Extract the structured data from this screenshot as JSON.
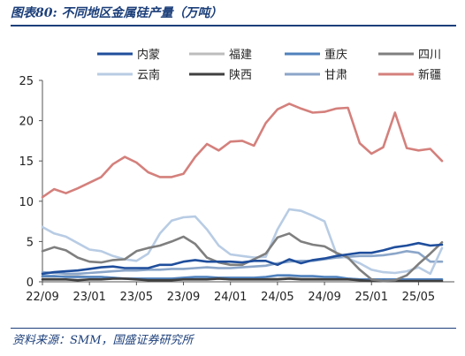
{
  "header": {
    "title": "图表80:  不同地区金属硅产量（万吨）"
  },
  "footer": {
    "source": "资料来源：SMM，国盛证券研究所"
  },
  "chart_data": {
    "type": "line",
    "title": "图表80:  不同地区金属硅产量（万吨）",
    "ylim": [
      0,
      25
    ],
    "yticks": [
      0,
      5,
      10,
      15,
      20,
      25
    ],
    "x_tick_labels": [
      "22/09",
      "23/01",
      "23/05",
      "23/09",
      "24/01",
      "24/05",
      "24/09",
      "25/01",
      "25/05"
    ],
    "x_months": [
      "22/09",
      "22/10",
      "22/11",
      "22/12",
      "23/01",
      "23/02",
      "23/03",
      "23/04",
      "23/05",
      "23/06",
      "23/07",
      "23/08",
      "23/09",
      "23/10",
      "23/11",
      "23/12",
      "24/01",
      "24/02",
      "24/03",
      "24/04",
      "24/05",
      "24/06",
      "24/07",
      "24/08",
      "24/09",
      "24/10",
      "24/11",
      "24/12",
      "25/01",
      "25/02",
      "25/03",
      "25/04",
      "25/05",
      "25/06",
      "25/07"
    ],
    "legend_position": "top",
    "grid": false,
    "series": [
      {
        "name": "内蒙",
        "color": "#1f4e9c",
        "width": 2.6,
        "values": [
          1.0,
          1.2,
          1.3,
          1.4,
          1.6,
          1.8,
          1.9,
          1.7,
          1.7,
          1.7,
          2.1,
          2.1,
          2.5,
          2.7,
          2.5,
          2.5,
          2.5,
          2.4,
          2.6,
          2.6,
          2.1,
          2.8,
          2.3,
          2.7,
          2.9,
          3.2,
          3.4,
          3.6,
          3.6,
          3.9,
          4.3,
          4.5,
          4.8,
          4.5,
          4.6
        ]
      },
      {
        "name": "福建",
        "color": "#bdbdbd",
        "width": 2.6,
        "values": [
          0.6,
          0.6,
          0.7,
          0.7,
          0.6,
          0.6,
          0.5,
          0.4,
          0.4,
          0.3,
          0.3,
          0.4,
          0.4,
          0.5,
          0.5,
          0.4,
          0.4,
          0.4,
          0.4,
          0.4,
          0.4,
          0.5,
          0.4,
          0.4,
          0.4,
          0.4,
          0.4,
          0.3,
          0.3,
          0.3,
          0.3,
          0.3,
          0.3,
          0.3,
          0.3
        ]
      },
      {
        "name": "重庆",
        "color": "#4f81bd",
        "width": 2.6,
        "values": [
          0.7,
          0.7,
          0.6,
          0.6,
          0.6,
          0.6,
          0.5,
          0.4,
          0.4,
          0.4,
          0.4,
          0.4,
          0.5,
          0.6,
          0.6,
          0.5,
          0.5,
          0.5,
          0.5,
          0.6,
          0.8,
          0.8,
          0.7,
          0.7,
          0.6,
          0.6,
          0.4,
          0.3,
          0.3,
          0.3,
          0.3,
          0.3,
          0.3,
          0.3,
          0.3
        ]
      },
      {
        "name": "四川",
        "color": "#7f7f7f",
        "width": 2.6,
        "values": [
          3.8,
          4.3,
          3.9,
          3.0,
          2.5,
          2.4,
          2.7,
          2.8,
          3.8,
          4.2,
          4.5,
          5.0,
          5.6,
          4.7,
          3.0,
          2.4,
          2.1,
          2.1,
          2.8,
          3.5,
          5.5,
          6.0,
          5.0,
          4.6,
          4.4,
          3.6,
          3.0,
          1.5,
          0.3,
          0.1,
          0.2,
          0.8,
          2.2,
          3.5,
          4.9
        ]
      },
      {
        "name": "云南",
        "color": "#b8cce4",
        "width": 2.6,
        "values": [
          6.8,
          6.0,
          5.6,
          4.8,
          4.0,
          3.8,
          3.2,
          2.8,
          2.6,
          3.5,
          6.0,
          7.6,
          8.0,
          8.1,
          6.5,
          4.5,
          3.4,
          3.2,
          3.0,
          3.1,
          6.5,
          9.0,
          8.8,
          8.2,
          7.5,
          3.5,
          2.9,
          2.3,
          1.5,
          1.2,
          1.1,
          1.3,
          1.8,
          1.0,
          4.2
        ]
      },
      {
        "name": "陕西",
        "color": "#404040",
        "width": 2.6,
        "values": [
          0.3,
          0.3,
          0.3,
          0.2,
          0.3,
          0.3,
          0.4,
          0.4,
          0.3,
          0.2,
          0.2,
          0.2,
          0.3,
          0.3,
          0.3,
          0.4,
          0.3,
          0.3,
          0.3,
          0.3,
          0.3,
          0.4,
          0.3,
          0.3,
          0.3,
          0.3,
          0.3,
          0.2,
          0.1,
          0.1,
          0.1,
          0.1,
          0.1,
          0.1,
          0.1
        ]
      },
      {
        "name": "甘肃",
        "color": "#8ba6c9",
        "width": 2.6,
        "values": [
          1.2,
          1.1,
          1.0,
          1.0,
          1.1,
          1.2,
          1.3,
          1.4,
          1.4,
          1.5,
          1.5,
          1.6,
          1.6,
          1.7,
          1.8,
          1.7,
          1.7,
          1.8,
          1.9,
          2.0,
          2.3,
          2.5,
          2.6,
          2.6,
          2.8,
          3.0,
          3.1,
          3.2,
          3.2,
          3.3,
          3.5,
          3.8,
          3.6,
          2.5,
          2.5
        ]
      },
      {
        "name": "新疆",
        "color": "#d4807c",
        "width": 2.6,
        "values": [
          10.5,
          11.5,
          11.0,
          11.6,
          12.3,
          13.0,
          14.6,
          15.5,
          14.8,
          13.6,
          13.0,
          13.0,
          13.4,
          15.5,
          17.1,
          16.3,
          17.4,
          17.5,
          16.9,
          19.7,
          21.4,
          22.1,
          21.5,
          21.0,
          21.1,
          21.5,
          21.6,
          17.2,
          15.9,
          16.7,
          21.0,
          16.6,
          16.3,
          16.5,
          15.0
        ]
      }
    ]
  }
}
